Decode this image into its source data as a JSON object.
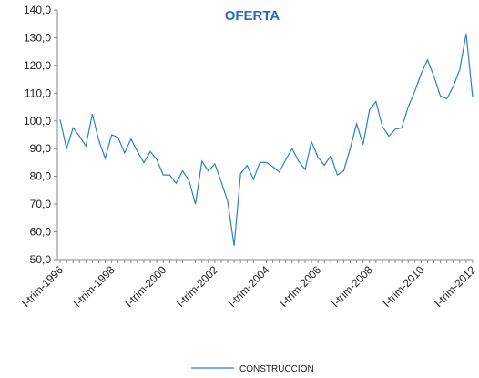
{
  "chart_data": {
    "type": "line",
    "title": "OFERTA",
    "categories": [
      "I-trim-1996",
      null,
      null,
      null,
      null,
      null,
      null,
      null,
      "I-trim-1998",
      null,
      null,
      null,
      null,
      null,
      null,
      null,
      "I-trim-2000",
      null,
      null,
      null,
      null,
      null,
      null,
      null,
      "I-trim-2002",
      null,
      null,
      null,
      null,
      null,
      null,
      null,
      "I-trim-2004",
      null,
      null,
      null,
      null,
      null,
      null,
      null,
      "I-trim-2006",
      null,
      null,
      null,
      null,
      null,
      null,
      null,
      "I-trim-2008",
      null,
      null,
      null,
      null,
      null,
      null,
      null,
      "I-trim-2010",
      null,
      null,
      null,
      null,
      null,
      null,
      null,
      "I-trim-2012"
    ],
    "series": [
      {
        "name": "CONSTRUCCION",
        "color": "#2a7fc9",
        "values": [
          100.5,
          90,
          97.5,
          94.5,
          91,
          102.5,
          93,
          86.5,
          95,
          94,
          88.5,
          93.5,
          89,
          85,
          89,
          86,
          80.5,
          80.5,
          77.5,
          82,
          78.5,
          70,
          85.5,
          82,
          84.5,
          78,
          71,
          55,
          81,
          84,
          79,
          85,
          85,
          83.5,
          81.5,
          86,
          90,
          85.5,
          82.5,
          92.5,
          87,
          84,
          87.5,
          80.5,
          82,
          90,
          99,
          91.5,
          104,
          107,
          98,
          94.5,
          97,
          97.5,
          105,
          110.5,
          117,
          122,
          116,
          109,
          108,
          112.5,
          118.5,
          131.5,
          108.5
        ]
      }
    ],
    "ylim": [
      50,
      140
    ],
    "yticks": [
      {
        "value": 50,
        "label": "50,0"
      },
      {
        "value": 60,
        "label": "60,0"
      },
      {
        "value": 70,
        "label": "70,0"
      },
      {
        "value": 80,
        "label": "80,0"
      },
      {
        "value": 90,
        "label": "90,0"
      },
      {
        "value": 100,
        "label": "100,0"
      },
      {
        "value": 110,
        "label": "110,0"
      },
      {
        "value": 120,
        "label": "120,0"
      },
      {
        "value": 130,
        "label": "130,0"
      },
      {
        "value": 140,
        "label": "140,0"
      }
    ],
    "grid": false,
    "legend": "bottom"
  }
}
